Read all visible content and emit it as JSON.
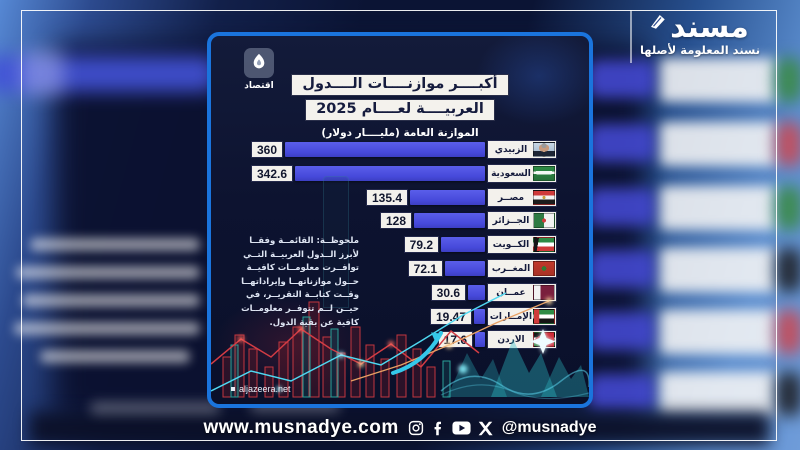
{
  "brand": {
    "logo_text": "مسند",
    "tagline": "نسند المعلومة لأصلها"
  },
  "footer": {
    "website": "www.musnadye.com",
    "handle": "@musnadye",
    "icons": [
      "instagram-icon",
      "facebook-icon",
      "youtube-icon",
      "x-icon"
    ]
  },
  "infographic": {
    "source_logo_icon": "al-jazeera-logo",
    "source_label": "اقتصاد",
    "title_line1": "أكبــــر موازنــــات الــــدول",
    "title_line2": "العربيــــة لعــــام 2025",
    "subtitle": "الموازنة العامة (مليــــار دولار)",
    "note_lines": [
      "ملحوظــة: القائمــة وفقــا",
      "لأبرز الــدول العربيــة التــي",
      "توافــرت معلومــات كافيــة",
      "حــول موازناتهــا وإيراداتهــا",
      "وقــت كتابــة التقريــر، في",
      "حيــن لــم تتوفــر معلومــات",
      "كافية عن بقية الدول."
    ],
    "watermark": "aljazeera.net",
    "colors": {
      "bar": "#4a4de2",
      "card_border": "#1a74dd",
      "box_bg": "#f3f1ec",
      "box_text": "#12172e"
    }
  },
  "chart_data": {
    "type": "bar",
    "orientation": "horizontal",
    "title": "أكبر موازنات الدول العربية لعام 2025",
    "xlabel": "الموازنة العامة (مليار دولار)",
    "categories": [
      "الزبيدي",
      "السعودية",
      "مصــر",
      "الجــزائر",
      "الكــويت",
      "المغــرب",
      "عمــان",
      "الإمــارات",
      "الأردن"
    ],
    "values": [
      360,
      342.6,
      135.4,
      128,
      79.2,
      72.1,
      30.6,
      19.47,
      17.6
    ],
    "value_labels": [
      "360",
      "342.6",
      "135.4",
      "128",
      "79.2",
      "72.1",
      "30.6",
      "19.47",
      "17.6"
    ],
    "xlim": [
      0,
      360
    ],
    "legend": "none",
    "grid": false,
    "rows": [
      {
        "label": "الزبيدي",
        "value": 360,
        "display": "360",
        "flag": "portrait"
      },
      {
        "label": "السعودية",
        "value": 342.6,
        "display": "342.6",
        "flag": "saudi"
      },
      {
        "label": "مصــر",
        "value": 135.4,
        "display": "135.4",
        "flag": "egypt"
      },
      {
        "label": "الجــزائر",
        "value": 128,
        "display": "128",
        "flag": "algeria"
      },
      {
        "label": "الكــويت",
        "value": 79.2,
        "display": "79.2",
        "flag": "kuwait"
      },
      {
        "label": "المغــرب",
        "value": 72.1,
        "display": "72.1",
        "flag": "morocco"
      },
      {
        "label": "عمــان",
        "value": 30.6,
        "display": "30.6",
        "flag": "oman"
      },
      {
        "label": "الإمــارات",
        "value": 19.47,
        "display": "19.47",
        "flag": "uae"
      },
      {
        "label": "الأردن",
        "value": 17.6,
        "display": "17.6",
        "flag": "jordan"
      }
    ]
  }
}
